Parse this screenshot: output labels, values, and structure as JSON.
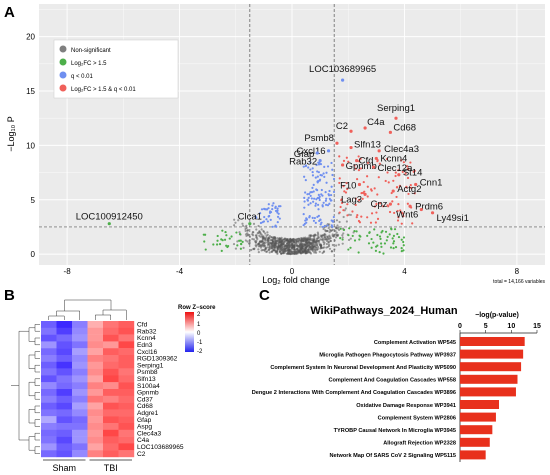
{
  "panel_labels": {
    "a": "A",
    "b": "B",
    "c": "C"
  },
  "legend": {
    "items": [
      {
        "label": "Non-significant",
        "color": "#7f7f7f"
      },
      {
        "label": "Log₂FC > 1.5",
        "color": "#4daf4a"
      },
      {
        "label": "q < 0.01",
        "color": "#6f8ff0"
      },
      {
        "label": "Log₂FC > 1.5 & q < 0.01",
        "color": "#f0605a"
      }
    ]
  },
  "heatmap_legend": {
    "title": "Row Z−score",
    "ticks": [
      "2",
      "1",
      "0",
      "-1",
      "-2"
    ]
  },
  "chart_data": [
    {
      "type": "scatter",
      "subtype": "volcano",
      "xlabel": "Log₂ fold change",
      "ylabel": "−Log₁₀ P",
      "xlim": [
        -9,
        9
      ],
      "ylim": [
        -1,
        23
      ],
      "xticks": [
        "-8",
        "-4",
        "0",
        "4",
        "8"
      ],
      "yticks": [
        "0",
        "5",
        "10",
        "15",
        "20"
      ],
      "fc_threshold": 1.5,
      "p_threshold": 2.5,
      "footer": "total = 14,166 variables",
      "labeled_points": [
        {
          "label": "LOC103689965",
          "x": 1.8,
          "y": 16.0,
          "group": "q < 0.01"
        },
        {
          "label": "Serping1",
          "x": 3.7,
          "y": 12.5,
          "group": "Log₂FC > 1.5 & q < 0.01"
        },
        {
          "label": "C2",
          "x": 2.1,
          "y": 11.3,
          "group": "Log₂FC > 1.5 & q < 0.01"
        },
        {
          "label": "C4a",
          "x": 2.6,
          "y": 11.6,
          "group": "Log₂FC > 1.5 & q < 0.01"
        },
        {
          "label": "Cd68",
          "x": 3.5,
          "y": 11.2,
          "group": "Log₂FC > 1.5 & q < 0.01"
        },
        {
          "label": "Psmb8",
          "x": 1.6,
          "y": 10.2,
          "group": "Log₂FC > 1.5 & q < 0.01"
        },
        {
          "label": "Slfn13",
          "x": 2.1,
          "y": 9.8,
          "group": "Log₂FC > 1.5 & q < 0.01"
        },
        {
          "label": "Clec4a3",
          "x": 3.1,
          "y": 9.5,
          "group": "Log₂FC > 1.5 & q < 0.01"
        },
        {
          "label": "Cxcl16",
          "x": 1.3,
          "y": 9.5,
          "group": "q < 0.01"
        },
        {
          "label": "Gfap",
          "x": 0.9,
          "y": 9.3,
          "group": "q < 0.01"
        },
        {
          "label": "Kcnn4",
          "x": 3.0,
          "y": 8.8,
          "group": "Log₂FC > 1.5 & q < 0.01"
        },
        {
          "label": "Cfd",
          "x": 2.3,
          "y": 8.6,
          "group": "Log₂FC > 1.5 & q < 0.01"
        },
        {
          "label": "Rab32",
          "x": 1.0,
          "y": 8.6,
          "group": "q < 0.01"
        },
        {
          "label": "Gpnmb",
          "x": 1.8,
          "y": 8.2,
          "group": "Log₂FC > 1.5 & q < 0.01"
        },
        {
          "label": "Clec12a",
          "x": 2.9,
          "y": 8.0,
          "group": "Log₂FC > 1.5 & q < 0.01"
        },
        {
          "label": "St14",
          "x": 3.8,
          "y": 7.3,
          "group": "Log₂FC > 1.5 & q < 0.01"
        },
        {
          "label": "F10",
          "x": 2.4,
          "y": 6.4,
          "group": "Log₂FC > 1.5 & q < 0.01"
        },
        {
          "label": "Cnn1",
          "x": 4.4,
          "y": 6.4,
          "group": "Log₂FC > 1.5 & q < 0.01"
        },
        {
          "label": "Actg2",
          "x": 3.6,
          "y": 5.8,
          "group": "Log₂FC > 1.5 & q < 0.01"
        },
        {
          "label": "Lag3",
          "x": 2.6,
          "y": 5.5,
          "group": "Log₂FC > 1.5 & q < 0.01"
        },
        {
          "label": "Cpz",
          "x": 3.5,
          "y": 4.6,
          "group": "Log₂FC > 1.5 & q < 0.01"
        },
        {
          "label": "Prdm6",
          "x": 4.2,
          "y": 4.4,
          "group": "Log₂FC > 1.5 & q < 0.01"
        },
        {
          "label": "Wnt6",
          "x": 4.6,
          "y": 4.1,
          "group": "Log₂FC > 1.5 & q < 0.01"
        },
        {
          "label": "Ly49si1",
          "x": 5.0,
          "y": 3.8,
          "group": "Log₂FC > 1.5 & q < 0.01"
        },
        {
          "label": "LOC100912450",
          "x": -6.5,
          "y": 2.8,
          "group": "Log₂FC > 1.5"
        },
        {
          "label": "Clca1",
          "x": -1.5,
          "y": 2.8,
          "group": "Log₂FC > 1.5"
        }
      ]
    },
    {
      "type": "heatmap",
      "groups": [
        {
          "name": "Sham",
          "columns": 3
        },
        {
          "name": "TBI",
          "columns": 3
        }
      ],
      "rows": [
        "Cfd",
        "Rab32",
        "Kcnn4",
        "Edn3",
        "Cxcl16",
        "RGD1309362",
        "Serping1",
        "Psmb8",
        "Slfn13",
        "S100a4",
        "Gpnmb",
        "Cd37",
        "Cd68",
        "Adgre1",
        "Gfap",
        "Aspg",
        "Clec4a3",
        "C4a",
        "LOC103689965",
        "C2"
      ],
      "values": [
        [
          -1.5,
          -2.0,
          -1.2,
          0.7,
          1.2,
          1.4
        ],
        [
          -1.3,
          -1.8,
          -1.1,
          0.9,
          1.3,
          1.5
        ],
        [
          -1.6,
          -1.4,
          -1.0,
          0.9,
          1.5,
          1.2
        ],
        [
          -1.0,
          -1.6,
          -1.3,
          1.0,
          0.9,
          1.6
        ],
        [
          -1.4,
          -1.7,
          -0.9,
          0.8,
          1.4,
          1.3
        ],
        [
          -1.2,
          -1.5,
          -1.1,
          1.1,
          1.2,
          1.4
        ],
        [
          -1.5,
          -1.9,
          -1.0,
          0.9,
          1.3,
          1.4
        ],
        [
          -1.3,
          -1.6,
          -1.2,
          1.0,
          1.5,
          1.2
        ],
        [
          -1.6,
          -1.3,
          -1.0,
          0.8,
          1.6,
          1.3
        ],
        [
          -1.1,
          -1.4,
          -1.2,
          1.1,
          1.0,
          1.5
        ],
        [
          -1.4,
          -1.8,
          -1.0,
          0.9,
          1.4,
          1.4
        ],
        [
          -1.2,
          -1.5,
          -1.2,
          1.2,
          1.1,
          1.3
        ],
        [
          -1.5,
          -1.7,
          -0.9,
          0.8,
          1.5,
          1.4
        ],
        [
          -1.3,
          -1.4,
          -1.1,
          1.0,
          1.3,
          1.3
        ],
        [
          -0.8,
          -1.6,
          -1.4,
          0.9,
          1.5,
          1.4
        ],
        [
          -1.2,
          -1.3,
          -1.3,
          1.0,
          1.2,
          1.5
        ],
        [
          -1.4,
          -1.5,
          -1.0,
          0.9,
          1.6,
          1.2
        ],
        [
          -1.3,
          -1.7,
          -1.0,
          1.0,
          1.4,
          1.3
        ],
        [
          -1.0,
          -1.5,
          -1.3,
          0.8,
          1.3,
          1.6
        ],
        [
          -1.4,
          -1.6,
          -1.1,
          1.1,
          1.4,
          1.2
        ]
      ],
      "color_scale": {
        "low": "#2222ee",
        "mid": "#ffffff",
        "high": "#ee1111",
        "range": [
          -2,
          2
        ]
      }
    },
    {
      "type": "bar",
      "orientation": "horizontal",
      "title": "WikiPathways_2024_Human",
      "xlabel": "−log(p-value)",
      "xlim": [
        0,
        15
      ],
      "xticks": [
        "0",
        "5",
        "10",
        "15"
      ],
      "categories": [
        "Complement Activation WP545",
        "Microglia Pathogen Phagocytosis Pathway WP3937",
        "Complement System In Neuronal Development And Plasticity WP5090",
        "Complement And Coagulation Cascades WP558",
        "Dengue 2 Interactions With Complement And Coagulation Cascades WP3896",
        "Oxidative Damage Response WP3941",
        "Complement System WP2806",
        "TYROBP Causal Network In Microglia WP3945",
        "Allograft Rejection WP2328",
        "Network Map Of SARS CoV 2 Signaling WP5115"
      ],
      "values": [
        12.6,
        12.3,
        11.9,
        11.2,
        10.9,
        7.6,
        7.0,
        6.3,
        5.8,
        5.0
      ],
      "color": "#e8301c"
    }
  ]
}
